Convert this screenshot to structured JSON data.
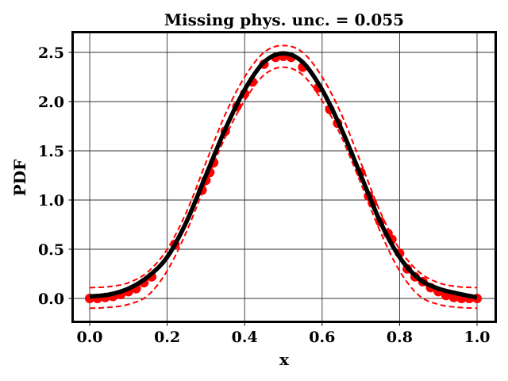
{
  "chart_data": {
    "type": "line",
    "title": "Missing phys. unc. = 0.055",
    "xlabel": "x",
    "ylabel": "PDF",
    "xlim": [
      -0.045,
      1.045
    ],
    "ylim": [
      -0.245,
      2.71
    ],
    "grid": true,
    "legend": null,
    "xticks": [
      "0.0",
      "0.2",
      "0.4",
      "0.6",
      "0.8",
      "1.0"
    ],
    "yticks": [
      "0.0",
      "0.5",
      "1.0",
      "1.5",
      "2.0",
      "2.5"
    ],
    "series": [
      {
        "name": "data points",
        "style": "red markers",
        "color": "#ff0000",
        "x": [
          0.0,
          0.02,
          0.04,
          0.06,
          0.08,
          0.1,
          0.12,
          0.14,
          0.16,
          0.22,
          0.29,
          0.3,
          0.31,
          0.32,
          0.35,
          0.38,
          0.4,
          0.42,
          0.45,
          0.48,
          0.5,
          0.52,
          0.55,
          0.59,
          0.62,
          0.64,
          0.7,
          0.72,
          0.73,
          0.75,
          0.77,
          0.78,
          0.8,
          0.82,
          0.84,
          0.86,
          0.88,
          0.9,
          0.92,
          0.94,
          0.96,
          0.98,
          1.0
        ],
        "y": [
          0.0,
          0.0,
          0.01,
          0.02,
          0.04,
          0.07,
          0.1,
          0.16,
          0.22,
          0.55,
          1.1,
          1.2,
          1.28,
          1.38,
          1.7,
          1.95,
          2.08,
          2.2,
          2.38,
          2.45,
          2.46,
          2.45,
          2.35,
          2.14,
          1.92,
          1.78,
          1.28,
          1.04,
          0.97,
          0.78,
          0.66,
          0.6,
          0.46,
          0.3,
          0.22,
          0.17,
          0.11,
          0.07,
          0.03,
          0.01,
          0.0,
          0.0,
          0.0
        ]
      },
      {
        "name": "model",
        "style": "black thick solid line",
        "color": "#000000",
        "x": [
          0.0,
          0.05,
          0.1,
          0.15,
          0.2,
          0.25,
          0.3,
          0.35,
          0.4,
          0.45,
          0.5,
          0.55,
          0.6,
          0.65,
          0.7,
          0.75,
          0.8,
          0.85,
          0.9,
          0.95,
          1.0
        ],
        "y": [
          0.02,
          0.04,
          0.1,
          0.22,
          0.42,
          0.78,
          1.25,
          1.72,
          2.12,
          2.4,
          2.49,
          2.4,
          2.12,
          1.72,
          1.25,
          0.78,
          0.42,
          0.2,
          0.1,
          0.05,
          0.01
        ]
      },
      {
        "name": "upper band",
        "style": "red dashed",
        "color": "#ff0000",
        "x": [
          0.0,
          0.05,
          0.1,
          0.15,
          0.2,
          0.25,
          0.3,
          0.35,
          0.4,
          0.45,
          0.5,
          0.55,
          0.6,
          0.65,
          0.7,
          0.75,
          0.8,
          0.85,
          0.9,
          0.95,
          1.0
        ],
        "y": [
          0.11,
          0.12,
          0.16,
          0.27,
          0.5,
          0.88,
          1.38,
          1.87,
          2.25,
          2.5,
          2.57,
          2.5,
          2.25,
          1.87,
          1.38,
          0.88,
          0.5,
          0.27,
          0.16,
          0.12,
          0.11
        ]
      },
      {
        "name": "lower band",
        "style": "red dashed",
        "color": "#ff0000",
        "x": [
          0.0,
          0.05,
          0.1,
          0.15,
          0.2,
          0.25,
          0.3,
          0.35,
          0.4,
          0.45,
          0.5,
          0.55,
          0.6,
          0.65,
          0.7,
          0.75,
          0.8,
          0.85,
          0.9,
          0.95,
          1.0
        ],
        "y": [
          -0.1,
          -0.09,
          -0.06,
          0.03,
          0.28,
          0.68,
          1.17,
          1.64,
          2.01,
          2.27,
          2.35,
          2.27,
          2.01,
          1.64,
          1.17,
          0.68,
          0.28,
          0.03,
          -0.06,
          -0.09,
          -0.1
        ]
      }
    ]
  }
}
